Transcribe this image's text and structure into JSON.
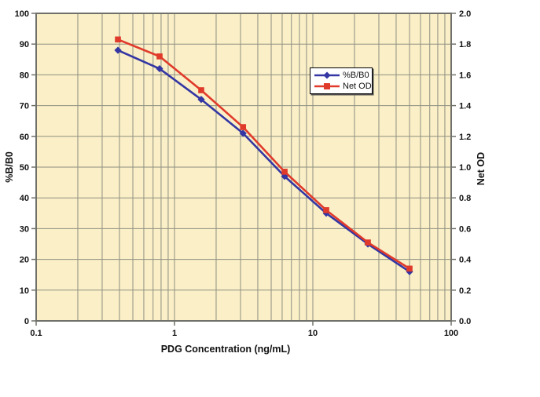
{
  "chart_data": {
    "type": "line",
    "title": "",
    "x_axis": {
      "label": "PDG Concentration (ng/mL)",
      "scale": "log",
      "min": 0.1,
      "max": 100,
      "tick_values": [
        0.1,
        1,
        10,
        100
      ],
      "tick_labels": [
        "0.1",
        "1",
        "10",
        "100"
      ]
    },
    "y_left": {
      "label": "%B/B0",
      "min": 0,
      "max": 100,
      "step": 10
    },
    "y_right": {
      "label": "Net OD",
      "min": 0,
      "max": 2.0,
      "step": 0.2
    },
    "x": [
      0.39,
      0.78,
      1.56,
      3.13,
      6.25,
      12.5,
      25,
      50
    ],
    "series": [
      {
        "name": "%B/B0",
        "axis": "left",
        "color": "#3336a3",
        "marker": "diamond",
        "values": [
          88,
          82,
          72,
          61,
          47,
          35,
          25,
          16
        ]
      },
      {
        "name": "Net OD",
        "axis": "right",
        "color": "#e03a2b",
        "marker": "square",
        "values": [
          1.83,
          1.72,
          1.5,
          1.26,
          0.97,
          0.72,
          0.51,
          0.34
        ]
      }
    ],
    "grid": true,
    "legend_position": "upper-middle",
    "plot_bg_color": "#faefc6",
    "grid_color": "#8f8f82",
    "axis_color": "#70706a",
    "outer_bg_color": "#ffffff"
  }
}
